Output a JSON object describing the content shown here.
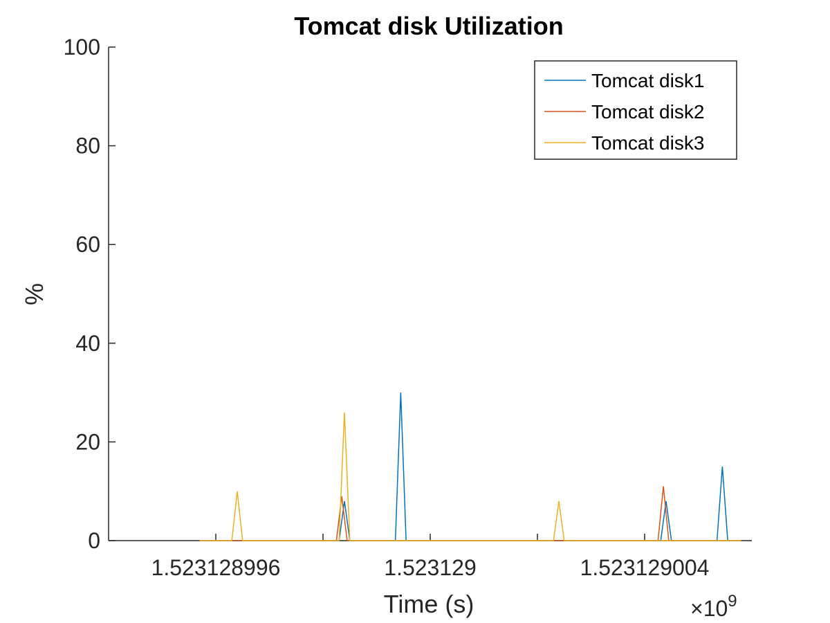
{
  "chart_data": {
    "type": "line",
    "title": "Tomcat disk Utilization",
    "xlabel": "Time (s)",
    "ylabel": "%",
    "x_exponent_label": "×10",
    "x_exponent_power": "9",
    "xlim": [
      1523128994,
      1523129006
    ],
    "ylim": [
      0,
      100
    ],
    "yticks": [
      0,
      20,
      40,
      60,
      80,
      100
    ],
    "ytick_labels": [
      "0",
      "20",
      "40",
      "60",
      "80",
      "100"
    ],
    "xticks": [
      1523128996,
      1523129000,
      1523129004
    ],
    "xtick_labels": [
      "1.523128996",
      "1.523129",
      "1.523129004"
    ],
    "xticks_minor": [
      1523128998,
      1523129002
    ],
    "grid": false,
    "legend_position": "top-right",
    "series": [
      {
        "name": "Tomcat disk1",
        "color": "#0072BD",
        "points": [
          [
            1523128995.7,
            0
          ],
          [
            1523128998.3,
            0
          ],
          [
            1523128998.4,
            8
          ],
          [
            1523128998.5,
            0
          ],
          [
            1523128999.35,
            0
          ],
          [
            1523128999.45,
            30
          ],
          [
            1523128999.55,
            0
          ],
          [
            1523129004.3,
            0
          ],
          [
            1523129004.4,
            8
          ],
          [
            1523129004.5,
            0
          ],
          [
            1523129005.35,
            0
          ],
          [
            1523129005.45,
            15
          ],
          [
            1523129005.55,
            0
          ],
          [
            1523129005.8,
            0
          ]
        ]
      },
      {
        "name": "Tomcat disk2",
        "color": "#D95319",
        "points": [
          [
            1523128995.7,
            0
          ],
          [
            1523128998.25,
            0
          ],
          [
            1523128998.35,
            9
          ],
          [
            1523128998.45,
            0
          ],
          [
            1523129004.25,
            0
          ],
          [
            1523129004.35,
            11
          ],
          [
            1523129004.45,
            0
          ],
          [
            1523129005.8,
            0
          ]
        ]
      },
      {
        "name": "Tomcat disk3",
        "color": "#EDB120",
        "points": [
          [
            1523128995.7,
            0
          ],
          [
            1523128996.3,
            0
          ],
          [
            1523128996.4,
            10
          ],
          [
            1523128996.5,
            0
          ],
          [
            1523128998.3,
            0
          ],
          [
            1523128998.4,
            26
          ],
          [
            1523128998.5,
            0
          ],
          [
            1523129002.3,
            0
          ],
          [
            1523129002.4,
            8
          ],
          [
            1523129002.5,
            0
          ],
          [
            1523129005.8,
            0
          ]
        ]
      }
    ]
  }
}
